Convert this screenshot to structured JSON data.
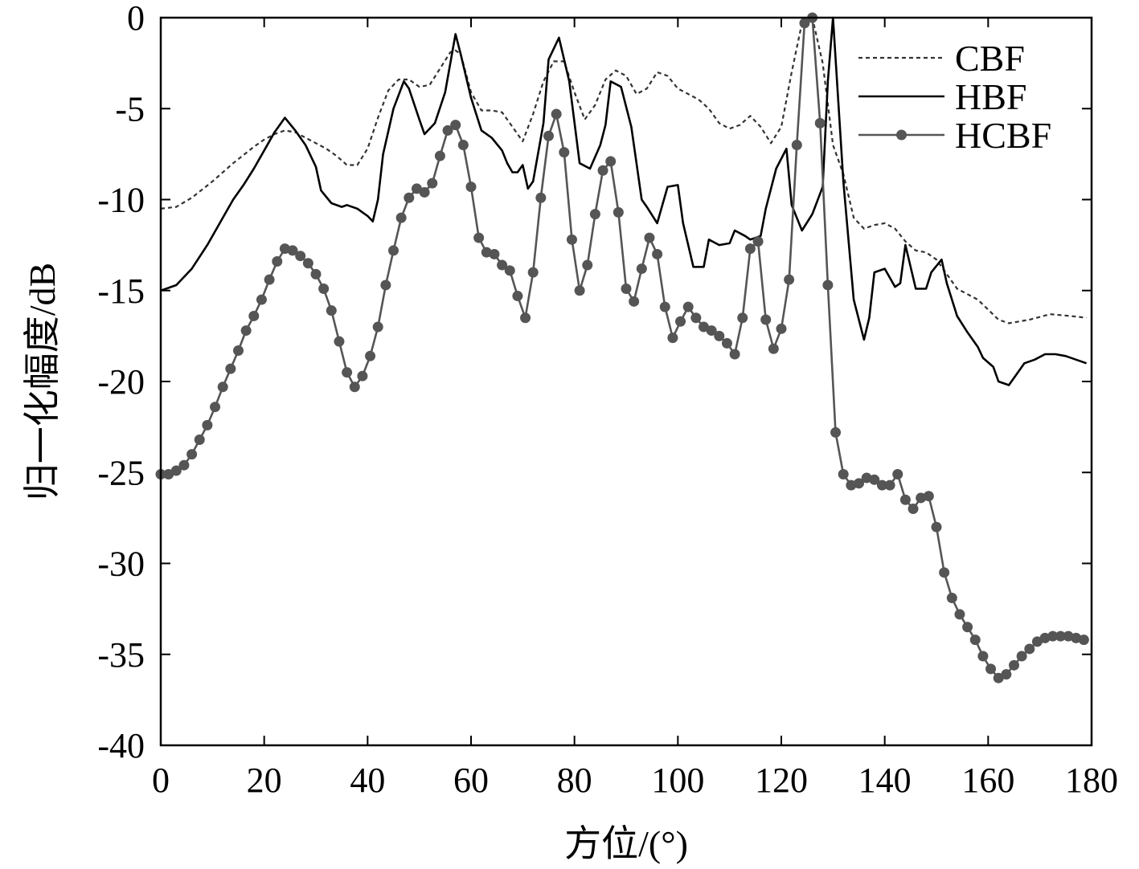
{
  "chart_data": {
    "type": "line",
    "xlabel": "方位/(°)",
    "ylabel": "归一化幅度/dB",
    "xlim": [
      0,
      180
    ],
    "ylim": [
      -40,
      0
    ],
    "xticks": [
      0,
      20,
      40,
      60,
      80,
      100,
      120,
      140,
      160,
      180
    ],
    "yticks": [
      0,
      -5,
      -10,
      -15,
      -20,
      -25,
      -30,
      -35,
      -40
    ],
    "ytick_labels": [
      "0",
      "-5",
      "-10",
      "-15",
      "-20",
      "-25",
      "-30",
      "-35",
      "-40"
    ],
    "grid": false,
    "legend_position": "top-right",
    "series": [
      {
        "name": "CBF",
        "style": "dotted",
        "color": "#333333",
        "x": [
          0,
          3,
          6,
          10,
          14,
          18,
          20,
          22,
          24,
          26,
          28,
          32,
          34,
          36,
          38,
          40,
          42,
          44,
          46,
          48,
          50,
          52,
          54,
          56,
          57,
          58,
          60,
          62,
          64,
          66,
          68,
          70,
          72,
          74,
          76,
          78,
          80,
          82,
          84,
          86,
          88,
          90,
          92,
          94,
          96,
          98,
          100,
          104,
          106,
          108,
          110,
          112,
          114,
          116,
          118,
          120,
          122,
          124,
          126,
          128,
          130,
          132,
          134,
          136,
          138,
          140,
          142,
          144,
          146,
          148,
          150,
          154,
          158,
          162,
          164,
          168,
          172,
          176,
          179
        ],
        "y": [
          -10.5,
          -10.4,
          -9.9,
          -9.0,
          -8.0,
          -7.1,
          -6.7,
          -6.4,
          -6.2,
          -6.3,
          -6.6,
          -7.2,
          -7.6,
          -8.1,
          -8.1,
          -7.2,
          -5.5,
          -4.0,
          -3.4,
          -3.4,
          -3.8,
          -3.7,
          -2.8,
          -1.9,
          -1.8,
          -2.0,
          -4.1,
          -5.1,
          -5.1,
          -5.2,
          -6.0,
          -6.8,
          -5.3,
          -3.5,
          -2.4,
          -2.4,
          -4.1,
          -5.6,
          -4.8,
          -3.4,
          -2.9,
          -3.2,
          -4.2,
          -3.9,
          -3.0,
          -3.2,
          -3.9,
          -4.5,
          -5.0,
          -5.8,
          -6.1,
          -5.9,
          -5.4,
          -6.0,
          -6.9,
          -6.0,
          -3.0,
          -0.3,
          0,
          -2.5,
          -7.0,
          -8.6,
          -11.0,
          -11.6,
          -11.4,
          -11.3,
          -11.6,
          -12.3,
          -12.8,
          -12.9,
          -13.3,
          -14.9,
          -15.5,
          -16.6,
          -16.8,
          -16.6,
          -16.3,
          -16.4,
          -16.5
        ]
      },
      {
        "name": "HBF",
        "style": "solid",
        "color": "#000000",
        "x": [
          0,
          3,
          6,
          9,
          12,
          14,
          16,
          18,
          20,
          22,
          24,
          26,
          28,
          30,
          31,
          33,
          35,
          36,
          38,
          40,
          41,
          42,
          43,
          45,
          47,
          48,
          50,
          51,
          53,
          55,
          57,
          58,
          60,
          62,
          64,
          66,
          67,
          68,
          69,
          70,
          71,
          72,
          74,
          75,
          77,
          79,
          81,
          83,
          85,
          86,
          87,
          89,
          91,
          93,
          94,
          96,
          98,
          100,
          101,
          103,
          105,
          106,
          108,
          110,
          111,
          113,
          114,
          116,
          117,
          119,
          121,
          122,
          124,
          126,
          128,
          129,
          130,
          132,
          134,
          136,
          137,
          138,
          140,
          142,
          143,
          144,
          146,
          148,
          149,
          151,
          152,
          154,
          156,
          158,
          159,
          161,
          162,
          164,
          165,
          167,
          169,
          171,
          173,
          175,
          179
        ],
        "y": [
          -15.0,
          -14.7,
          -13.8,
          -12.5,
          -11.0,
          -10.0,
          -9.2,
          -8.3,
          -7.3,
          -6.3,
          -5.5,
          -6.2,
          -7.0,
          -8.2,
          -9.5,
          -10.2,
          -10.4,
          -10.3,
          -10.5,
          -10.9,
          -11.2,
          -10.0,
          -7.5,
          -5.0,
          -3.5,
          -3.9,
          -5.6,
          -6.4,
          -5.8,
          -4.1,
          -0.9,
          -2.0,
          -4.4,
          -6.2,
          -6.6,
          -7.3,
          -8.0,
          -8.5,
          -8.5,
          -8.1,
          -9.4,
          -9.0,
          -5.8,
          -2.3,
          -1.1,
          -3.5,
          -8.0,
          -8.3,
          -7.0,
          -5.9,
          -3.5,
          -3.8,
          -6.0,
          -10.0,
          -10.4,
          -11.3,
          -9.3,
          -9.2,
          -11.3,
          -13.7,
          -13.7,
          -12.2,
          -12.5,
          -12.4,
          -11.7,
          -12.0,
          -12.2,
          -12.0,
          -10.5,
          -8.3,
          -7.2,
          -10.3,
          -11.7,
          -10.8,
          -9.3,
          -3.5,
          0,
          -9.0,
          -15.5,
          -17.7,
          -16.5,
          -14.0,
          -13.8,
          -14.8,
          -14.6,
          -12.5,
          -14.9,
          -14.9,
          -14.0,
          -13.3,
          -14.6,
          -16.4,
          -17.3,
          -18.1,
          -18.7,
          -19.2,
          -20.0,
          -20.2,
          -19.8,
          -19.0,
          -18.8,
          -18.5,
          -18.5,
          -18.6,
          -19.0
        ]
      },
      {
        "name": "HCBF",
        "style": "solid-markers",
        "color": "#555555",
        "x": [
          0,
          1.5,
          3,
          4.5,
          6,
          7.5,
          9,
          10.5,
          12,
          13.5,
          15,
          16.5,
          18,
          19.5,
          21,
          22.5,
          24,
          25.5,
          27,
          28.5,
          30,
          31.5,
          33,
          34.5,
          36,
          37.5,
          39,
          40.5,
          42,
          43.5,
          45,
          46.5,
          48,
          49.5,
          51,
          52.5,
          54,
          55.5,
          57,
          58.5,
          60,
          61.5,
          63,
          64.5,
          66,
          67.5,
          69,
          70.5,
          72,
          73.5,
          75,
          76.5,
          78,
          79.5,
          81,
          82.5,
          84,
          85.5,
          87,
          88.5,
          90,
          91.5,
          93,
          94.5,
          96,
          97.5,
          99,
          100.5,
          102,
          103.5,
          105,
          106.5,
          108,
          109.5,
          111,
          112.5,
          114,
          115.5,
          117,
          118.5,
          120,
          121.5,
          123,
          124.5,
          126,
          127.5,
          129,
          130.5,
          132,
          133.5,
          135,
          136.5,
          138,
          139.5,
          141,
          142.5,
          144,
          145.5,
          147,
          148.5,
          150,
          151.5,
          153,
          154.5,
          156,
          157.5,
          159,
          160.5,
          162,
          163.5,
          165,
          166.5,
          168,
          169.5,
          171,
          172.5,
          174,
          175.5,
          177,
          178.5
        ],
        "y": [
          -25.1,
          -25.1,
          -24.9,
          -24.6,
          -24.0,
          -23.2,
          -22.4,
          -21.4,
          -20.3,
          -19.3,
          -18.3,
          -17.2,
          -16.4,
          -15.5,
          -14.4,
          -13.4,
          -12.7,
          -12.8,
          -13.1,
          -13.5,
          -14.1,
          -14.9,
          -16.1,
          -17.8,
          -19.5,
          -20.3,
          -19.7,
          -18.6,
          -17.0,
          -14.7,
          -12.8,
          -11.0,
          -9.9,
          -9.4,
          -9.6,
          -9.1,
          -7.6,
          -6.2,
          -5.9,
          -7.0,
          -9.3,
          -12.1,
          -12.9,
          -13.0,
          -13.6,
          -13.9,
          -15.3,
          -16.5,
          -14.0,
          -9.9,
          -6.5,
          -5.3,
          -7.4,
          -12.2,
          -15.0,
          -13.6,
          -10.8,
          -8.4,
          -7.9,
          -10.7,
          -14.9,
          -15.6,
          -13.8,
          -12.1,
          -13.0,
          -15.9,
          -17.6,
          -16.7,
          -15.9,
          -16.5,
          -17.0,
          -17.2,
          -17.5,
          -17.9,
          -18.5,
          -16.5,
          -12.7,
          -12.3,
          -16.6,
          -18.2,
          -17.1,
          -14.4,
          -7.0,
          -0.3,
          0,
          -5.8,
          -14.7,
          -22.8,
          -25.1,
          -25.7,
          -25.6,
          -25.3,
          -25.4,
          -25.7,
          -25.7,
          -25.1,
          -26.5,
          -27.0,
          -26.4,
          -26.3,
          -28.0,
          -30.5,
          -31.9,
          -32.8,
          -33.5,
          -34.2,
          -35.1,
          -35.8,
          -36.3,
          -36.1,
          -35.6,
          -35.1,
          -34.7,
          -34.3,
          -34.1,
          -34.0,
          -34.0,
          -34.0,
          -34.1,
          -34.2
        ]
      }
    ]
  }
}
